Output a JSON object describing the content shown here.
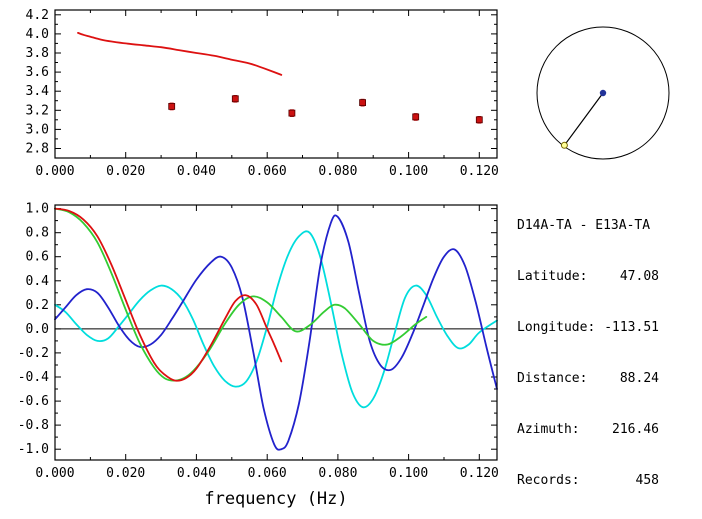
{
  "window": {
    "background": "#ffffff"
  },
  "info_panel": {
    "title": "D14A-TA - E13A-TA",
    "rows": [
      {
        "label": "Latitude:",
        "value": "47.08"
      },
      {
        "label": "Longitude:",
        "value": "-113.51"
      },
      {
        "label": "Distance:",
        "value": "88.24"
      },
      {
        "label": "Azimuth:",
        "value": "216.46"
      },
      {
        "label": "Records:",
        "value": "458"
      }
    ]
  },
  "station_map": {
    "azimuth_deg": 216.46,
    "circle_color": "#000000",
    "center_dot_color": "#223399",
    "end_marker_fill": "#ffff99",
    "end_marker_stroke": "#776600"
  },
  "chart_data": [
    {
      "type": "line",
      "name": "dispersion-panel",
      "title": "",
      "xlabel": "",
      "ylabel": "",
      "xlim": [
        0,
        0.125
      ],
      "ylim": [
        2.7,
        4.25
      ],
      "grid": false,
      "zero_line": false,
      "xticks": {
        "values": [
          0.0,
          0.02,
          0.04,
          0.06,
          0.08,
          0.1,
          0.12
        ],
        "labels": [
          "0.000",
          "0.020",
          "0.040",
          "0.060",
          "0.080",
          "0.100",
          "0.120"
        ],
        "minor_step": 0.01
      },
      "yticks": {
        "values": [
          2.8,
          3.0,
          3.2,
          3.4,
          3.6,
          3.8,
          4.0,
          4.2
        ],
        "labels": [
          "2.8",
          "3.0",
          "3.2",
          "3.4",
          "3.6",
          "3.8",
          "4.0",
          "4.2"
        ],
        "minor_step": 0.1
      },
      "series": [
        {
          "name": "red-dispersion-curve",
          "color": "#dd1111",
          "width": 1.8,
          "points": [
            [
              0.0065,
              4.01
            ],
            [
              0.008,
              3.99
            ],
            [
              0.01,
              3.97
            ],
            [
              0.013,
              3.94
            ],
            [
              0.016,
              3.92
            ],
            [
              0.02,
              3.9
            ],
            [
              0.025,
              3.88
            ],
            [
              0.03,
              3.86
            ],
            [
              0.035,
              3.83
            ],
            [
              0.04,
              3.8
            ],
            [
              0.045,
              3.77
            ],
            [
              0.05,
              3.73
            ],
            [
              0.055,
              3.69
            ],
            [
              0.059,
              3.64
            ],
            [
              0.062,
              3.6
            ],
            [
              0.064,
              3.57
            ]
          ]
        }
      ],
      "markers": [
        {
          "name": "velocity-measurement-point",
          "color": "#cc1111",
          "shape": "square",
          "size": 6,
          "yerr": 0.035,
          "points": [
            [
              0.033,
              3.24
            ],
            [
              0.051,
              3.32
            ],
            [
              0.067,
              3.17
            ],
            [
              0.087,
              3.28
            ],
            [
              0.102,
              3.13
            ],
            [
              0.12,
              3.1
            ]
          ]
        }
      ]
    },
    {
      "type": "line",
      "name": "spectra-panel",
      "title": "",
      "xlabel": "frequency (Hz)",
      "ylabel": "",
      "xlim": [
        0,
        0.125
      ],
      "ylim": [
        -1.09,
        1.03
      ],
      "grid": false,
      "zero_line": true,
      "xticks": {
        "values": [
          0.0,
          0.02,
          0.04,
          0.06,
          0.08,
          0.1,
          0.12
        ],
        "labels": [
          "0.000",
          "0.020",
          "0.040",
          "0.060",
          "0.080",
          "0.100",
          "0.120"
        ],
        "minor_step": 0.01
      },
      "yticks": {
        "values": [
          -1.0,
          -0.8,
          -0.6,
          -0.4,
          -0.2,
          0.0,
          0.2,
          0.4,
          0.6,
          0.8,
          1.0
        ],
        "labels": [
          "-1.0",
          "-0.8",
          "-0.6",
          "-0.4",
          "-0.2",
          "0.0",
          "0.2",
          "0.4",
          "0.6",
          "0.8",
          "1.0"
        ],
        "minor_step": 0.1
      },
      "series": [
        {
          "name": "cyan-series",
          "color": "#00dddd",
          "width": 1.8,
          "points": [
            [
              0.0,
              0.2
            ],
            [
              0.003,
              0.14
            ],
            [
              0.006,
              0.04
            ],
            [
              0.009,
              -0.05
            ],
            [
              0.012,
              -0.1
            ],
            [
              0.015,
              -0.08
            ],
            [
              0.018,
              0.02
            ],
            [
              0.021,
              0.13
            ],
            [
              0.024,
              0.24
            ],
            [
              0.027,
              0.32
            ],
            [
              0.03,
              0.36
            ],
            [
              0.033,
              0.33
            ],
            [
              0.036,
              0.24
            ],
            [
              0.039,
              0.08
            ],
            [
              0.042,
              -0.13
            ],
            [
              0.045,
              -0.31
            ],
            [
              0.048,
              -0.43
            ],
            [
              0.051,
              -0.48
            ],
            [
              0.054,
              -0.44
            ],
            [
              0.057,
              -0.27
            ],
            [
              0.06,
              0.02
            ],
            [
              0.063,
              0.36
            ],
            [
              0.066,
              0.62
            ],
            [
              0.069,
              0.77
            ],
            [
              0.072,
              0.8
            ],
            [
              0.075,
              0.6
            ],
            [
              0.078,
              0.22
            ],
            [
              0.081,
              -0.2
            ],
            [
              0.084,
              -0.52
            ],
            [
              0.087,
              -0.65
            ],
            [
              0.09,
              -0.58
            ],
            [
              0.093,
              -0.36
            ],
            [
              0.096,
              -0.04
            ],
            [
              0.099,
              0.26
            ],
            [
              0.102,
              0.36
            ],
            [
              0.105,
              0.28
            ],
            [
              0.108,
              0.1
            ],
            [
              0.111,
              -0.06
            ],
            [
              0.114,
              -0.16
            ],
            [
              0.117,
              -0.13
            ],
            [
              0.12,
              -0.03
            ],
            [
              0.125,
              0.07
            ]
          ]
        },
        {
          "name": "blue-series",
          "color": "#2222cc",
          "width": 1.8,
          "points": [
            [
              0.0,
              0.08
            ],
            [
              0.003,
              0.18
            ],
            [
              0.006,
              0.28
            ],
            [
              0.009,
              0.33
            ],
            [
              0.012,
              0.3
            ],
            [
              0.015,
              0.18
            ],
            [
              0.018,
              0.03
            ],
            [
              0.021,
              -0.09
            ],
            [
              0.024,
              -0.15
            ],
            [
              0.027,
              -0.13
            ],
            [
              0.03,
              -0.05
            ],
            [
              0.033,
              0.08
            ],
            [
              0.036,
              0.22
            ],
            [
              0.04,
              0.41
            ],
            [
              0.044,
              0.55
            ],
            [
              0.047,
              0.6
            ],
            [
              0.05,
              0.51
            ],
            [
              0.053,
              0.26
            ],
            [
              0.056,
              -0.18
            ],
            [
              0.059,
              -0.66
            ],
            [
              0.062,
              -0.96
            ],
            [
              0.064,
              -1.0
            ],
            [
              0.066,
              -0.93
            ],
            [
              0.069,
              -0.62
            ],
            [
              0.072,
              -0.1
            ],
            [
              0.075,
              0.52
            ],
            [
              0.078,
              0.88
            ],
            [
              0.08,
              0.93
            ],
            [
              0.083,
              0.72
            ],
            [
              0.086,
              0.3
            ],
            [
              0.089,
              -0.1
            ],
            [
              0.092,
              -0.3
            ],
            [
              0.095,
              -0.34
            ],
            [
              0.098,
              -0.24
            ],
            [
              0.101,
              -0.05
            ],
            [
              0.104,
              0.18
            ],
            [
              0.107,
              0.42
            ],
            [
              0.11,
              0.6
            ],
            [
              0.113,
              0.66
            ],
            [
              0.116,
              0.52
            ],
            [
              0.119,
              0.22
            ],
            [
              0.122,
              -0.15
            ],
            [
              0.125,
              -0.5
            ]
          ]
        },
        {
          "name": "green-series",
          "color": "#33cc33",
          "width": 1.8,
          "points": [
            [
              0.0,
              1.0
            ],
            [
              0.004,
              0.97
            ],
            [
              0.008,
              0.88
            ],
            [
              0.012,
              0.72
            ],
            [
              0.016,
              0.46
            ],
            [
              0.02,
              0.16
            ],
            [
              0.024,
              -0.12
            ],
            [
              0.028,
              -0.32
            ],
            [
              0.031,
              -0.41
            ],
            [
              0.034,
              -0.43
            ],
            [
              0.037,
              -0.4
            ],
            [
              0.04,
              -0.32
            ],
            [
              0.044,
              -0.16
            ],
            [
              0.048,
              0.04
            ],
            [
              0.052,
              0.2
            ],
            [
              0.056,
              0.27
            ],
            [
              0.06,
              0.22
            ],
            [
              0.064,
              0.1
            ],
            [
              0.068,
              -0.02
            ],
            [
              0.072,
              0.03
            ],
            [
              0.076,
              0.14
            ],
            [
              0.079,
              0.2
            ],
            [
              0.082,
              0.17
            ],
            [
              0.086,
              0.04
            ],
            [
              0.09,
              -0.1
            ],
            [
              0.094,
              -0.13
            ],
            [
              0.098,
              -0.06
            ],
            [
              0.102,
              0.04
            ],
            [
              0.105,
              0.1
            ]
          ]
        },
        {
          "name": "red-series",
          "color": "#dd1111",
          "width": 1.8,
          "points": [
            [
              0.0,
              1.0
            ],
            [
              0.004,
              0.98
            ],
            [
              0.008,
              0.91
            ],
            [
              0.012,
              0.77
            ],
            [
              0.016,
              0.53
            ],
            [
              0.02,
              0.24
            ],
            [
              0.024,
              -0.05
            ],
            [
              0.028,
              -0.28
            ],
            [
              0.031,
              -0.38
            ],
            [
              0.034,
              -0.43
            ],
            [
              0.037,
              -0.41
            ],
            [
              0.04,
              -0.33
            ],
            [
              0.044,
              -0.14
            ],
            [
              0.048,
              0.08
            ],
            [
              0.051,
              0.23
            ],
            [
              0.054,
              0.28
            ],
            [
              0.057,
              0.2
            ],
            [
              0.06,
              0.0
            ],
            [
              0.062,
              -0.13
            ],
            [
              0.064,
              -0.27
            ]
          ]
        }
      ],
      "markers": []
    }
  ]
}
